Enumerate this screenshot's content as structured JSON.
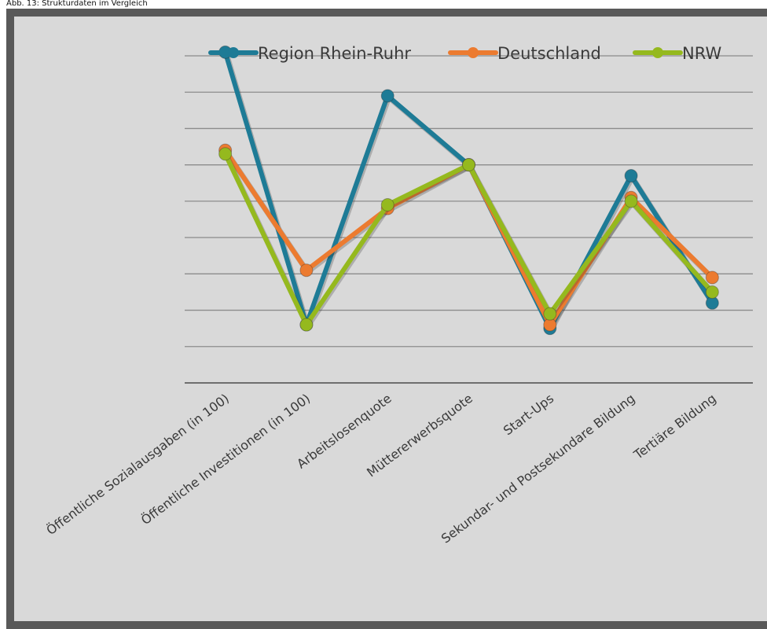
{
  "caption": "Abb. 13: Strukturdaten im Vergleich",
  "chart_data": {
    "type": "line",
    "title": "",
    "xlabel": "",
    "ylabel": "",
    "ylim": [
      0,
      9
    ],
    "y_ticks_labeled": false,
    "grid": true,
    "legend_position": "top",
    "categories": [
      "Öffentliche Sozialausgaben (in 100)",
      "Öffentliche Investitionen (in 100)",
      "Arbeitslosenquote",
      "Müttererwerbsquote",
      "Start-Ups",
      "Sekundar- und Postsekundare Bildung",
      "Tertiäre Bildung"
    ],
    "series": [
      {
        "name": "Region Rhein-Ruhr",
        "color": "#1e7b96",
        "values": [
          9.1,
          1.6,
          7.9,
          6.0,
          1.5,
          5.7,
          2.2
        ]
      },
      {
        "name": "Deutschland",
        "color": "#ec7b30",
        "values": [
          6.4,
          3.1,
          4.8,
          6.0,
          1.6,
          5.1,
          2.9
        ]
      },
      {
        "name": "NRW",
        "color": "#95b91e",
        "values": [
          6.3,
          1.6,
          4.9,
          6.0,
          1.9,
          5.0,
          2.5
        ]
      }
    ]
  }
}
